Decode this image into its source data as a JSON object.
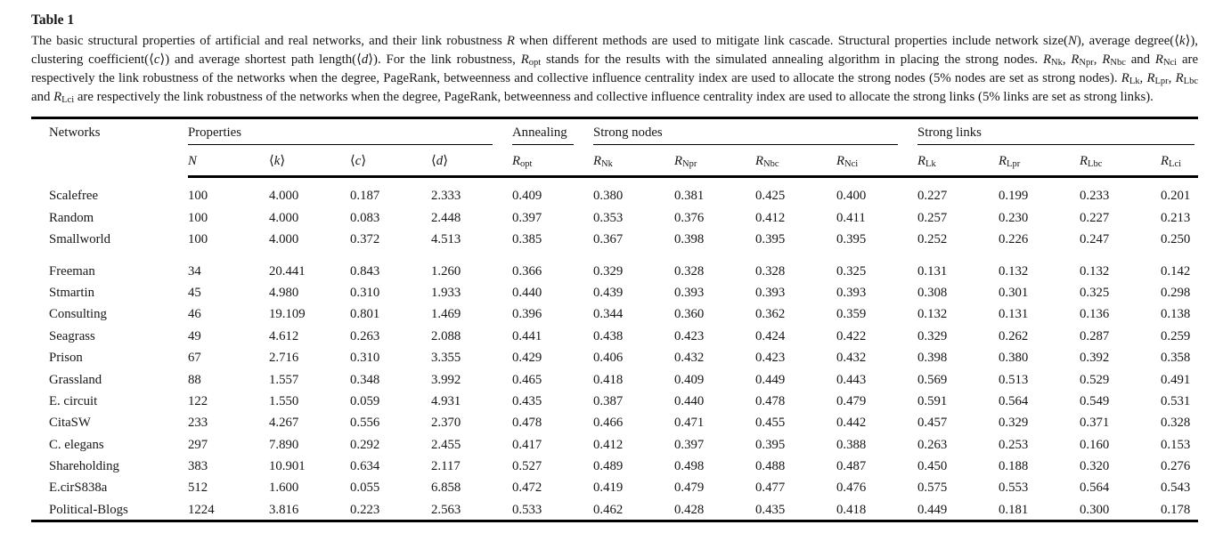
{
  "colors": {
    "text": "#161616",
    "rule": "#000000",
    "background": "#ffffff"
  },
  "title": "Table 1",
  "caption": "The basic structural properties of artificial and real networks, and their link robustness *R* when different methods are used to mitigate link cascade. Structural properties include network size(*N*), average degree(⟨*k*⟩), clustering coefficient(⟨*c*⟩) and average shortest path length(⟨*d*⟩). For the link robustness, *R*_{opt} stands for the results with the simulated annealing algorithm in placing the strong nodes. *R*_{Nk}, *R*_{Npr}, *R*_{Nbc} and *R*_{Nci} are respectively the link robustness of the networks when the degree, PageRank, betweenness and collective influence centrality index are used to allocate the strong nodes (5% nodes are set as strong nodes). *R*_{Lk}, *R*_{Lpr}, *R*_{Lbc} and *R*_{Lci} are respectively the link robustness of the networks when the degree, PageRank, betweenness and collective influence centrality index are used to allocate the strong links (5% links are set as strong links).",
  "table": {
    "first_column_header": "Networks",
    "column_groups": [
      {
        "label": "Properties",
        "span": 4,
        "underline": true
      },
      {
        "label": "Annealing",
        "span": 1,
        "underline": true
      },
      {
        "label": "Strong nodes",
        "span": 4,
        "underline": true
      },
      {
        "label": "Strong links",
        "span": 4,
        "underline": true
      }
    ],
    "columns": [
      "*N*",
      "⟨*k*⟩",
      "⟨*c*⟩",
      "⟨*d*⟩",
      "*R*_{opt}",
      "*R*_{Nk}",
      "*R*_{Npr}",
      "*R*_{Nbc}",
      "*R*_{Nci}",
      "*R*_{Lk}",
      "*R*_{Lpr}",
      "*R*_{Lbc}",
      "*R*_{Lci}"
    ],
    "row_groups": [
      {
        "rows": [
          {
            "network": "Scalefree",
            "values": [
              "100",
              "4.000",
              "0.187",
              "2.333",
              "0.409",
              "0.380",
              "0.381",
              "0.425",
              "0.400",
              "0.227",
              "0.199",
              "0.233",
              "0.201"
            ]
          },
          {
            "network": "Random",
            "values": [
              "100",
              "4.000",
              "0.083",
              "2.448",
              "0.397",
              "0.353",
              "0.376",
              "0.412",
              "0.411",
              "0.257",
              "0.230",
              "0.227",
              "0.213"
            ]
          },
          {
            "network": "Smallworld",
            "values": [
              "100",
              "4.000",
              "0.372",
              "4.513",
              "0.385",
              "0.367",
              "0.398",
              "0.395",
              "0.395",
              "0.252",
              "0.226",
              "0.247",
              "0.250"
            ]
          }
        ]
      },
      {
        "rows": [
          {
            "network": "Freeman",
            "values": [
              "34",
              "20.441",
              "0.843",
              "1.260",
              "0.366",
              "0.329",
              "0.328",
              "0.328",
              "0.325",
              "0.131",
              "0.132",
              "0.132",
              "0.142"
            ]
          },
          {
            "network": "Stmartin",
            "values": [
              "45",
              "4.980",
              "0.310",
              "1.933",
              "0.440",
              "0.439",
              "0.393",
              "0.393",
              "0.393",
              "0.308",
              "0.301",
              "0.325",
              "0.298"
            ]
          },
          {
            "network": "Consulting",
            "values": [
              "46",
              "19.109",
              "0.801",
              "1.469",
              "0.396",
              "0.344",
              "0.360",
              "0.362",
              "0.359",
              "0.132",
              "0.131",
              "0.136",
              "0.138"
            ]
          },
          {
            "network": "Seagrass",
            "values": [
              "49",
              "4.612",
              "0.263",
              "2.088",
              "0.441",
              "0.438",
              "0.423",
              "0.424",
              "0.422",
              "0.329",
              "0.262",
              "0.287",
              "0.259"
            ]
          },
          {
            "network": "Prison",
            "values": [
              "67",
              "2.716",
              "0.310",
              "3.355",
              "0.429",
              "0.406",
              "0.432",
              "0.423",
              "0.432",
              "0.398",
              "0.380",
              "0.392",
              "0.358"
            ]
          },
          {
            "network": "Grassland",
            "values": [
              "88",
              "1.557",
              "0.348",
              "3.992",
              "0.465",
              "0.418",
              "0.409",
              "0.449",
              "0.443",
              "0.569",
              "0.513",
              "0.529",
              "0.491"
            ]
          },
          {
            "network": "E. circuit",
            "values": [
              "122",
              "1.550",
              "0.059",
              "4.931",
              "0.435",
              "0.387",
              "0.440",
              "0.478",
              "0.479",
              "0.591",
              "0.564",
              "0.549",
              "0.531"
            ]
          },
          {
            "network": "CitaSW",
            "values": [
              "233",
              "4.267",
              "0.556",
              "2.370",
              "0.478",
              "0.466",
              "0.471",
              "0.455",
              "0.442",
              "0.457",
              "0.329",
              "0.371",
              "0.328"
            ]
          },
          {
            "network": "C. elegans",
            "values": [
              "297",
              "7.890",
              "0.292",
              "2.455",
              "0.417",
              "0.412",
              "0.397",
              "0.395",
              "0.388",
              "0.263",
              "0.253",
              "0.160",
              "0.153"
            ]
          },
          {
            "network": "Shareholding",
            "values": [
              "383",
              "10.901",
              "0.634",
              "2.117",
              "0.527",
              "0.489",
              "0.498",
              "0.488",
              "0.487",
              "0.450",
              "0.188",
              "0.320",
              "0.276"
            ]
          },
          {
            "network": "E.cirS838a",
            "values": [
              "512",
              "1.600",
              "0.055",
              "6.858",
              "0.472",
              "0.419",
              "0.479",
              "0.477",
              "0.476",
              "0.575",
              "0.553",
              "0.564",
              "0.543"
            ]
          },
          {
            "network": "Political-Blogs",
            "values": [
              "1224",
              "3.816",
              "0.223",
              "2.563",
              "0.533",
              "0.462",
              "0.428",
              "0.435",
              "0.418",
              "0.449",
              "0.181",
              "0.300",
              "0.178"
            ]
          }
        ]
      }
    ]
  }
}
